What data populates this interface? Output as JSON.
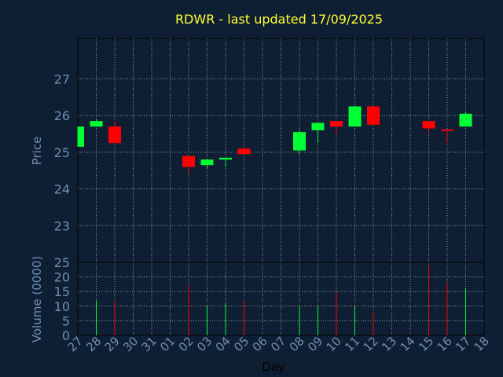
{
  "theme": {
    "background": "#0f1f33",
    "plot_background": "#0f1f33",
    "axis_color": "#000000",
    "grid_color": "#ffffff",
    "title_color": "#ffff33",
    "label_color": "#6f8fb2",
    "up_color": "#00ff33",
    "down_color": "#ff0000"
  },
  "chart_data": {
    "type": "candlestick",
    "title": "RDWR - last updated 17/09/2025",
    "xlabel": "Day",
    "price_panel": {
      "ylabel": "Price",
      "ylim": [
        22.0,
        28.1
      ],
      "yticks": [
        "23",
        "24",
        "25",
        "26",
        "27"
      ],
      "grid": true
    },
    "volume_panel": {
      "ylabel": "Volume (0000)",
      "ylim": [
        0,
        25
      ],
      "yticks": [
        "0",
        "5",
        "10",
        "15",
        "20",
        "25"
      ],
      "grid": true
    },
    "xticks": [
      "27",
      "28",
      "29",
      "30",
      "31",
      "01",
      "02",
      "03",
      "04",
      "05",
      "06",
      "07",
      "08",
      "09",
      "10",
      "11",
      "12",
      "13",
      "14",
      "15",
      "16",
      "17",
      "18"
    ],
    "candles": [
      {
        "day": "27",
        "open": 25.15,
        "close": 25.7,
        "high": 25.7,
        "low": 25.15,
        "volume": 0
      },
      {
        "day": "28",
        "open": 25.7,
        "close": 25.85,
        "high": 25.9,
        "low": 25.7,
        "volume": 12
      },
      {
        "day": "29",
        "open": 25.7,
        "close": 25.25,
        "high": 25.85,
        "low": 25.2,
        "volume": 12
      },
      {
        "day": "02",
        "open": 24.9,
        "close": 24.6,
        "high": 24.9,
        "low": 24.4,
        "volume": 17
      },
      {
        "day": "03",
        "open": 24.65,
        "close": 24.8,
        "high": 24.8,
        "low": 24.55,
        "volume": 10
      },
      {
        "day": "04",
        "open": 24.8,
        "close": 24.85,
        "high": 24.85,
        "low": 24.6,
        "volume": 11
      },
      {
        "day": "05",
        "open": 25.1,
        "close": 24.95,
        "high": 25.15,
        "low": 24.95,
        "volume": 12
      },
      {
        "day": "08",
        "open": 25.05,
        "close": 25.55,
        "high": 25.6,
        "low": 24.95,
        "volume": 10
      },
      {
        "day": "09",
        "open": 25.6,
        "close": 25.8,
        "high": 25.8,
        "low": 25.25,
        "volume": 10
      },
      {
        "day": "10",
        "open": 25.85,
        "close": 25.7,
        "high": 25.85,
        "low": 25.5,
        "volume": 15
      },
      {
        "day": "11",
        "open": 25.7,
        "close": 26.25,
        "high": 26.25,
        "low": 25.7,
        "volume": 10
      },
      {
        "day": "12",
        "open": 26.25,
        "close": 25.75,
        "high": 26.25,
        "low": 25.75,
        "volume": 8
      },
      {
        "day": "15",
        "open": 25.85,
        "close": 25.65,
        "high": 25.85,
        "low": 25.5,
        "volume": 24
      },
      {
        "day": "16",
        "open": 25.62,
        "close": 25.58,
        "high": 25.62,
        "low": 25.25,
        "volume": 18
      },
      {
        "day": "17",
        "open": 25.7,
        "close": 26.05,
        "high": 26.1,
        "low": 25.7,
        "volume": 16
      }
    ]
  }
}
